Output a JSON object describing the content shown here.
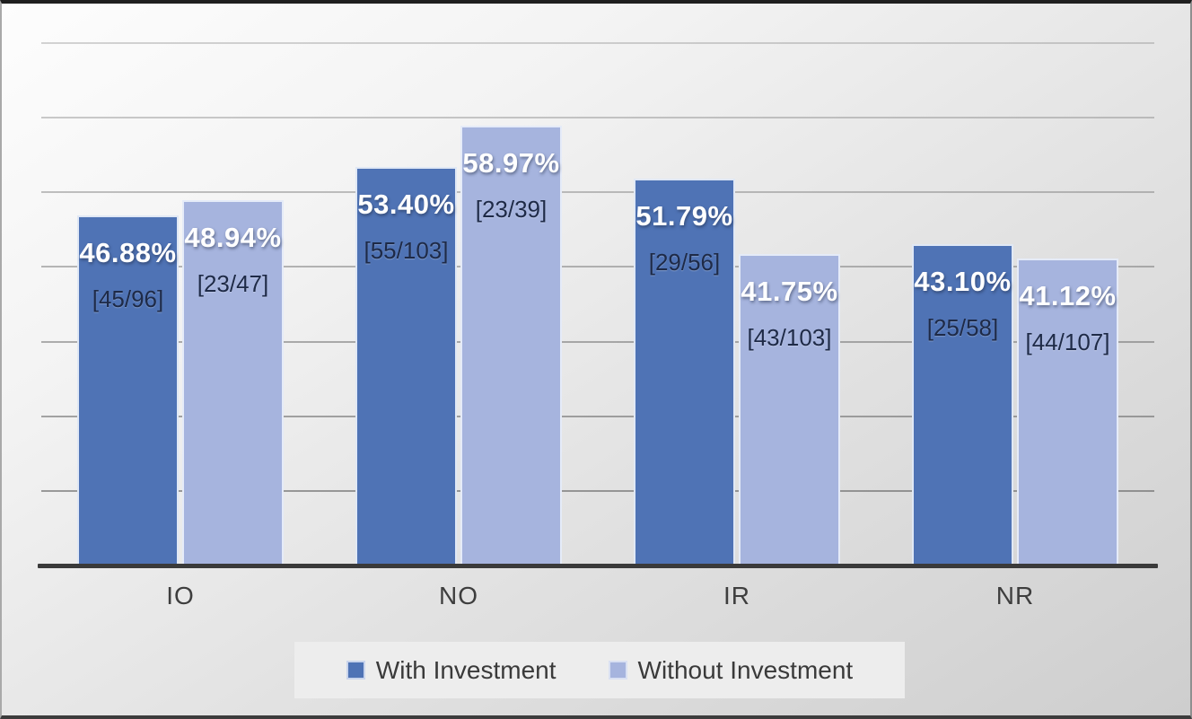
{
  "chart_data": {
    "type": "bar",
    "categories": [
      "IO",
      "NO",
      "IR",
      "NR"
    ],
    "series": [
      {
        "name": "With Investment",
        "color": "#4f73b5",
        "values": [
          46.88,
          53.4,
          51.79,
          43.1
        ],
        "percent_labels": [
          "46.88%",
          "53.40%",
          "51.79%",
          "43.10%"
        ],
        "count_labels": [
          "[45/96]",
          "[55/103]",
          "[29/56]",
          "[25/58]"
        ]
      },
      {
        "name": "Without Investment",
        "color": "#a6b4de",
        "values": [
          48.94,
          58.97,
          41.75,
          41.12
        ],
        "percent_labels": [
          "48.94%",
          "58.97%",
          "41.75%",
          "41.12%"
        ],
        "count_labels": [
          "[23/47]",
          "[23/39]",
          "[43/103]",
          "[44/107]"
        ]
      }
    ],
    "title": "",
    "xlabel": "",
    "ylabel": "",
    "ylim": [
      0,
      70
    ],
    "gridline_interval": 10,
    "grid": true,
    "y_tick_labels_visible": false,
    "legend_position": "bottom"
  },
  "legend": {
    "items": [
      {
        "label": "With Investment",
        "color": "#4f73b5"
      },
      {
        "label": "Without Investment",
        "color": "#a6b4de"
      }
    ]
  },
  "colors": {
    "bar_dark": "#4f73b5",
    "bar_light": "#a6b4de",
    "percent_text": "#ffffff",
    "count_text": "#1e2a47",
    "axis_line": "#3a3a3a",
    "category_text": "#3e3e3e",
    "legend_background": "#ededed"
  }
}
